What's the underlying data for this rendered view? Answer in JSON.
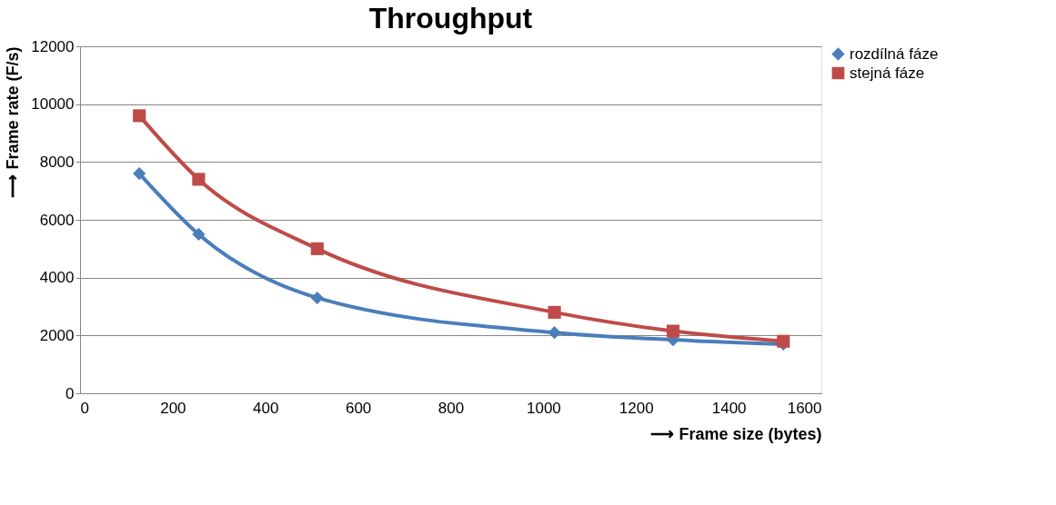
{
  "chart_data": {
    "type": "line",
    "title": "Throughput",
    "xlabel": "⟶ Frame size (bytes)",
    "ylabel": "⟶ Frame rate (F/s)",
    "x": [
      128,
      256,
      512,
      1024,
      1280,
      1518
    ],
    "series": [
      {
        "name": "rozdílná fáze",
        "color": "#4a7ebb",
        "marker": "diamond",
        "values": [
          7600,
          5500,
          3300,
          2100,
          1850,
          1700
        ]
      },
      {
        "name": "stejná fáze",
        "color": "#be4b48",
        "marker": "square",
        "values": [
          9600,
          7400,
          5000,
          2800,
          2150,
          1800
        ]
      }
    ],
    "xlim": [
      0,
      1600
    ],
    "xticks": [
      0,
      200,
      400,
      600,
      800,
      1000,
      1200,
      1400,
      1600
    ],
    "ylim": [
      0,
      12000
    ],
    "yticks": [
      0,
      2000,
      4000,
      6000,
      8000,
      10000,
      12000
    ],
    "grid": "y",
    "legend": "top right",
    "line_style": "solid"
  }
}
